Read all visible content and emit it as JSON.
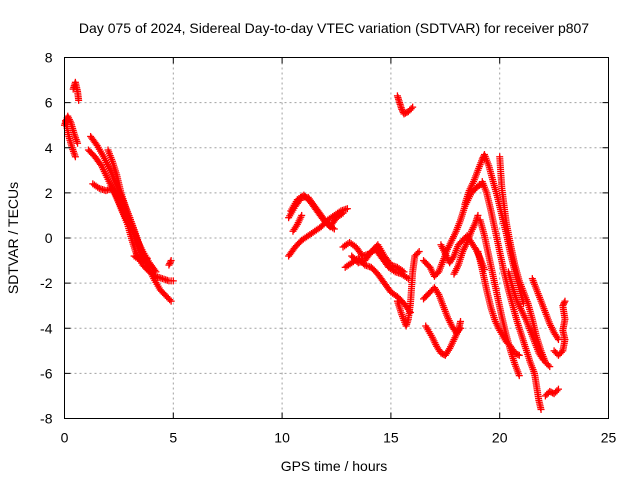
{
  "chart_data": {
    "type": "scatter",
    "title": "Day 075 of 2024, Sidereal Day-to-day VTEC variation (SDTVAR) for receiver p807",
    "xlabel": "GPS time / hours",
    "ylabel": "SDTVAR / TECUs",
    "xlim": [
      0,
      25
    ],
    "ylim": [
      -8,
      8
    ],
    "xticks": [
      "0",
      "5",
      "10",
      "15",
      "20",
      "25"
    ],
    "yticks": [
      "-8",
      "-6",
      "-4",
      "-2",
      "0",
      "2",
      "4",
      "6",
      "8"
    ],
    "grid": true,
    "marker": "plus",
    "color": "#ff0000",
    "segments": [
      {
        "name": "arc-0a",
        "points": [
          [
            0.05,
            5.2
          ],
          [
            0.2,
            4.5
          ],
          [
            0.35,
            4.0
          ],
          [
            0.5,
            3.6
          ]
        ]
      },
      {
        "name": "arc-0b",
        "points": [
          [
            0.0,
            5.0
          ],
          [
            0.15,
            5.4
          ],
          [
            0.3,
            5.1
          ],
          [
            0.45,
            4.6
          ],
          [
            0.6,
            4.2
          ]
        ]
      },
      {
        "name": "arc-0c",
        "points": [
          [
            0.4,
            6.6
          ],
          [
            0.5,
            6.9
          ],
          [
            0.6,
            6.5
          ],
          [
            0.65,
            6.1
          ]
        ]
      },
      {
        "name": "arc-1",
        "points": [
          [
            1.2,
            4.5
          ],
          [
            1.5,
            4.1
          ],
          [
            1.8,
            3.6
          ],
          [
            2.1,
            3.0
          ],
          [
            2.4,
            2.3
          ],
          [
            2.7,
            1.6
          ],
          [
            3.0,
            0.9
          ],
          [
            3.3,
            0.1
          ],
          [
            3.5,
            -0.5
          ],
          [
            3.8,
            -1.2
          ],
          [
            4.1,
            -1.8
          ],
          [
            4.4,
            -2.3
          ],
          [
            4.7,
            -2.6
          ],
          [
            4.9,
            -2.8
          ]
        ]
      },
      {
        "name": "arc-2",
        "points": [
          [
            1.1,
            3.9
          ],
          [
            1.4,
            3.6
          ],
          [
            1.7,
            3.2
          ],
          [
            2.0,
            2.6
          ],
          [
            2.3,
            2.0
          ],
          [
            2.6,
            1.3
          ],
          [
            2.9,
            0.6
          ],
          [
            3.1,
            -0.1
          ],
          [
            3.3,
            -0.7
          ],
          [
            3.6,
            -1.2
          ],
          [
            3.9,
            -1.5
          ],
          [
            4.2,
            -1.7
          ],
          [
            4.5,
            -1.8
          ],
          [
            4.8,
            -1.9
          ],
          [
            5.0,
            -1.9
          ]
        ]
      },
      {
        "name": "arc-3",
        "points": [
          [
            1.3,
            2.4
          ],
          [
            1.6,
            2.2
          ],
          [
            1.9,
            2.1
          ],
          [
            2.2,
            2.2
          ],
          [
            2.5,
            1.6
          ],
          [
            2.8,
            0.9
          ],
          [
            3.1,
            0.4
          ],
          [
            3.4,
            -0.2
          ],
          [
            3.6,
            -0.6
          ],
          [
            3.9,
            -1.1
          ],
          [
            4.2,
            -1.5
          ]
        ]
      },
      {
        "name": "arc-4",
        "points": [
          [
            2.0,
            3.9
          ],
          [
            2.2,
            3.4
          ],
          [
            2.4,
            2.8
          ],
          [
            2.6,
            2.0
          ],
          [
            2.8,
            1.4
          ],
          [
            3.0,
            0.9
          ],
          [
            3.2,
            0.3
          ],
          [
            3.4,
            -0.3
          ],
          [
            3.6,
            -0.9
          ]
        ]
      },
      {
        "name": "arc-4b",
        "points": [
          [
            3.2,
            -0.8
          ],
          [
            3.5,
            -1.0
          ],
          [
            3.8,
            -0.9
          ]
        ]
      },
      {
        "name": "arc-5",
        "points": [
          [
            4.8,
            -1.2
          ],
          [
            4.9,
            -1.0
          ]
        ]
      },
      {
        "name": "arc-6",
        "points": [
          [
            10.3,
            -0.8
          ],
          [
            10.6,
            -0.4
          ],
          [
            10.9,
            -0.1
          ],
          [
            11.2,
            0.1
          ],
          [
            11.5,
            0.3
          ],
          [
            11.8,
            0.5
          ],
          [
            12.1,
            0.8
          ],
          [
            12.4,
            1.0
          ],
          [
            12.7,
            1.2
          ],
          [
            13.0,
            1.3
          ]
        ]
      },
      {
        "name": "arc-7",
        "points": [
          [
            10.4,
            1.2
          ],
          [
            10.7,
            1.7
          ],
          [
            11.0,
            1.9
          ],
          [
            11.3,
            1.6
          ],
          [
            11.6,
            1.2
          ],
          [
            11.9,
            0.8
          ],
          [
            12.2,
            0.5
          ],
          [
            12.5,
            0.9
          ],
          [
            12.8,
            1.1
          ]
        ]
      },
      {
        "name": "arc-8",
        "points": [
          [
            10.3,
            0.9
          ],
          [
            10.6,
            1.4
          ],
          [
            10.9,
            1.8
          ],
          [
            11.2,
            1.8
          ],
          [
            11.5,
            1.4
          ],
          [
            11.8,
            1.0
          ],
          [
            12.1,
            0.6
          ],
          [
            12.4,
            0.4
          ]
        ]
      },
      {
        "name": "arc-8b",
        "points": [
          [
            10.5,
            0.3
          ],
          [
            10.7,
            0.6
          ],
          [
            10.9,
            1.0
          ]
        ]
      },
      {
        "name": "arc-9",
        "points": [
          [
            12.8,
            -0.4
          ],
          [
            13.1,
            -0.2
          ],
          [
            13.4,
            -0.4
          ],
          [
            13.7,
            -0.8
          ],
          [
            14.0,
            -0.7
          ],
          [
            14.3,
            -0.5
          ],
          [
            14.6,
            -0.9
          ],
          [
            14.9,
            -1.3
          ],
          [
            15.2,
            -1.5
          ],
          [
            15.5,
            -1.6
          ],
          [
            15.8,
            -1.8
          ]
        ]
      },
      {
        "name": "arc-10",
        "points": [
          [
            13.2,
            -0.8
          ],
          [
            13.5,
            -1.1
          ],
          [
            13.8,
            -1.0
          ],
          [
            14.1,
            -0.6
          ],
          [
            14.4,
            -0.3
          ],
          [
            14.7,
            -0.8
          ],
          [
            15.0,
            -1.2
          ],
          [
            15.3,
            -1.3
          ],
          [
            15.6,
            -1.5
          ]
        ]
      },
      {
        "name": "arc-11",
        "points": [
          [
            12.9,
            -1.3
          ],
          [
            13.2,
            -1.1
          ],
          [
            13.5,
            -0.9
          ],
          [
            13.8,
            -1.2
          ],
          [
            14.1,
            -1.3
          ],
          [
            14.4,
            -1.6
          ],
          [
            14.7,
            -2.0
          ],
          [
            15.0,
            -2.4
          ],
          [
            15.3,
            -2.6
          ],
          [
            15.6,
            -2.9
          ],
          [
            15.9,
            -3.3
          ]
        ]
      },
      {
        "name": "arc-12",
        "points": [
          [
            15.3,
            -2.8
          ],
          [
            15.5,
            -3.4
          ],
          [
            15.7,
            -3.9
          ],
          [
            15.8,
            -3.6
          ],
          [
            15.9,
            -2.9
          ],
          [
            16.0,
            -1.5
          ],
          [
            16.1,
            -0.8
          ],
          [
            16.3,
            -0.6
          ]
        ]
      },
      {
        "name": "arc-13",
        "points": [
          [
            15.3,
            6.3
          ],
          [
            15.4,
            6.0
          ],
          [
            15.5,
            5.7
          ],
          [
            15.6,
            5.5
          ],
          [
            15.8,
            5.6
          ],
          [
            16.0,
            5.8
          ]
        ]
      },
      {
        "name": "arc-14",
        "points": [
          [
            16.5,
            -2.7
          ],
          [
            16.8,
            -2.4
          ],
          [
            17.0,
            -2.2
          ],
          [
            17.2,
            -2.5
          ],
          [
            17.4,
            -3.0
          ],
          [
            17.6,
            -3.5
          ],
          [
            17.8,
            -3.9
          ],
          [
            18.0,
            -4.2
          ],
          [
            18.2,
            -4.0
          ]
        ]
      },
      {
        "name": "arc-15",
        "points": [
          [
            16.6,
            -3.9
          ],
          [
            16.9,
            -4.4
          ],
          [
            17.1,
            -4.8
          ],
          [
            17.3,
            -5.1
          ],
          [
            17.5,
            -5.2
          ],
          [
            17.7,
            -4.9
          ],
          [
            17.9,
            -4.5
          ],
          [
            18.1,
            -4.1
          ],
          [
            18.2,
            -3.7
          ]
        ]
      },
      {
        "name": "arc-16",
        "points": [
          [
            16.5,
            -1.0
          ],
          [
            16.8,
            -1.3
          ],
          [
            17.0,
            -1.7
          ],
          [
            17.2,
            -1.5
          ],
          [
            17.4,
            -1.0
          ],
          [
            17.6,
            -0.5
          ],
          [
            17.8,
            -0.1
          ],
          [
            18.0,
            0.3
          ],
          [
            18.2,
            0.8
          ],
          [
            18.4,
            1.4
          ],
          [
            18.7,
            2.0
          ],
          [
            19.0,
            2.3
          ],
          [
            19.2,
            2.4
          ]
        ]
      },
      {
        "name": "arc-17",
        "points": [
          [
            17.3,
            -0.3
          ],
          [
            17.5,
            -0.7
          ],
          [
            17.7,
            -1.1
          ],
          [
            17.9,
            -0.8
          ],
          [
            18.1,
            -0.3
          ],
          [
            18.3,
            -0.1
          ],
          [
            18.5,
            0.1
          ],
          [
            18.7,
            -0.2
          ],
          [
            18.9,
            -0.5
          ],
          [
            19.1,
            -0.9
          ],
          [
            19.3,
            -1.4
          ]
        ]
      },
      {
        "name": "arc-18",
        "points": [
          [
            17.9,
            -1.6
          ],
          [
            18.1,
            -1.2
          ],
          [
            18.3,
            -0.6
          ],
          [
            18.5,
            -0.2
          ],
          [
            18.7,
            0.3
          ],
          [
            18.9,
            0.7
          ],
          [
            19.0,
            1.0
          ]
        ]
      },
      {
        "name": "arc-19",
        "points": [
          [
            18.4,
            1.5
          ],
          [
            18.6,
            2.1
          ],
          [
            18.8,
            2.5
          ],
          [
            19.0,
            3.0
          ],
          [
            19.2,
            3.5
          ],
          [
            19.3,
            3.7
          ],
          [
            19.5,
            3.2
          ],
          [
            19.7,
            2.5
          ],
          [
            19.9,
            1.8
          ],
          [
            20.1,
            1.0
          ],
          [
            20.3,
            0.2
          ],
          [
            20.5,
            -0.7
          ],
          [
            20.7,
            -1.5
          ],
          [
            20.9,
            -2.2
          ],
          [
            21.1,
            -2.9
          ]
        ]
      },
      {
        "name": "arc-20",
        "points": [
          [
            19.2,
            2.5
          ],
          [
            19.4,
            2.0
          ],
          [
            19.6,
            1.2
          ],
          [
            19.8,
            0.3
          ],
          [
            20.0,
            -0.6
          ],
          [
            20.2,
            -1.5
          ],
          [
            20.4,
            -2.3
          ],
          [
            20.6,
            -3.0
          ],
          [
            20.8,
            -3.7
          ],
          [
            21.0,
            -4.3
          ],
          [
            21.2,
            -4.9
          ],
          [
            21.4,
            -5.5
          ],
          [
            21.6,
            -6.0
          ],
          [
            21.7,
            -6.6
          ],
          [
            21.8,
            -7.2
          ],
          [
            21.9,
            -7.6
          ]
        ]
      },
      {
        "name": "arc-21",
        "points": [
          [
            19.1,
            0.8
          ],
          [
            19.3,
            0.1
          ],
          [
            19.5,
            -0.8
          ],
          [
            19.7,
            -1.7
          ],
          [
            19.9,
            -2.6
          ],
          [
            20.1,
            -3.5
          ],
          [
            20.3,
            -4.3
          ],
          [
            20.5,
            -5.0
          ],
          [
            20.7,
            -5.6
          ],
          [
            20.9,
            -6.1
          ]
        ]
      },
      {
        "name": "arc-22",
        "points": [
          [
            19.0,
            -0.6
          ],
          [
            19.2,
            -1.4
          ],
          [
            19.4,
            -2.3
          ],
          [
            19.6,
            -3.1
          ],
          [
            19.8,
            -3.7
          ],
          [
            20.0,
            -4.1
          ],
          [
            20.3,
            -4.6
          ],
          [
            20.5,
            -4.8
          ],
          [
            20.7,
            -5.1
          ],
          [
            20.9,
            -5.2
          ]
        ]
      },
      {
        "name": "arc-23",
        "points": [
          [
            20.0,
            3.6
          ],
          [
            20.1,
            2.2
          ],
          [
            20.3,
            0.7
          ],
          [
            20.5,
            -0.3
          ],
          [
            20.7,
            -1.2
          ],
          [
            20.9,
            -1.9
          ],
          [
            21.1,
            -2.4
          ],
          [
            21.3,
            -2.9
          ],
          [
            21.5,
            -3.6
          ],
          [
            21.7,
            -4.4
          ],
          [
            21.9,
            -5.0
          ],
          [
            22.1,
            -5.5
          ],
          [
            22.3,
            -5.7
          ]
        ]
      },
      {
        "name": "arc-24",
        "points": [
          [
            20.4,
            -1.5
          ],
          [
            20.6,
            -2.2
          ],
          [
            20.8,
            -2.8
          ],
          [
            21.0,
            -3.2
          ],
          [
            21.2,
            -3.6
          ],
          [
            21.4,
            -4.1
          ],
          [
            21.6,
            -4.6
          ],
          [
            21.8,
            -5.1
          ],
          [
            22.0,
            -5.4
          ]
        ]
      },
      {
        "name": "arc-25",
        "points": [
          [
            21.5,
            -1.8
          ],
          [
            21.7,
            -2.3
          ],
          [
            21.9,
            -2.8
          ],
          [
            22.1,
            -3.3
          ],
          [
            22.3,
            -3.8
          ],
          [
            22.5,
            -4.2
          ],
          [
            22.7,
            -4.5
          ]
        ]
      },
      {
        "name": "arc-26",
        "points": [
          [
            22.1,
            -7.0
          ],
          [
            22.3,
            -6.8
          ],
          [
            22.5,
            -6.9
          ],
          [
            22.7,
            -6.7
          ]
        ]
      },
      {
        "name": "arc-27",
        "points": [
          [
            22.5,
            -5.0
          ],
          [
            22.7,
            -5.2
          ],
          [
            22.9,
            -5.0
          ],
          [
            23.0,
            -4.5
          ],
          [
            22.9,
            -4.1
          ],
          [
            23.0,
            -3.6
          ],
          [
            22.9,
            -3.0
          ],
          [
            23.0,
            -2.8
          ]
        ]
      }
    ]
  }
}
